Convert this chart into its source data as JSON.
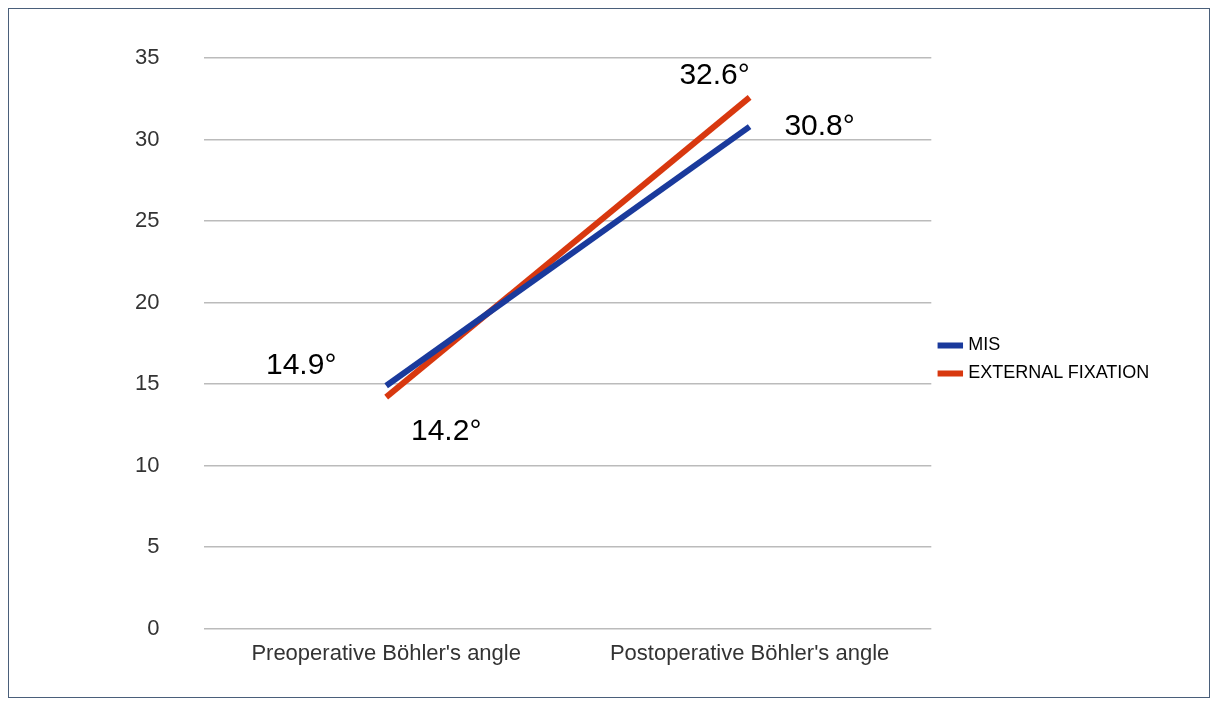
{
  "chart_data": {
    "type": "line",
    "categories": [
      "Preoperative Böhler's angle",
      "Postoperative Böhler's angle"
    ],
    "series": [
      {
        "name": "MIS",
        "color": "#1a3a9c",
        "values": [
          14.9,
          30.8
        ],
        "value_labels": [
          "14.9°",
          "30.8°"
        ]
      },
      {
        "name": "EXTERNAL FIXATION",
        "color": "#d8380f",
        "values": [
          14.2,
          32.6
        ],
        "value_labels": [
          "14.2°",
          "32.6°"
        ]
      }
    ],
    "ylim": [
      0,
      35
    ],
    "yticks": [
      0,
      5,
      10,
      15,
      20,
      25,
      30,
      35
    ],
    "grid": "y",
    "legend": "right",
    "marker": "none",
    "line_style": "solid"
  }
}
